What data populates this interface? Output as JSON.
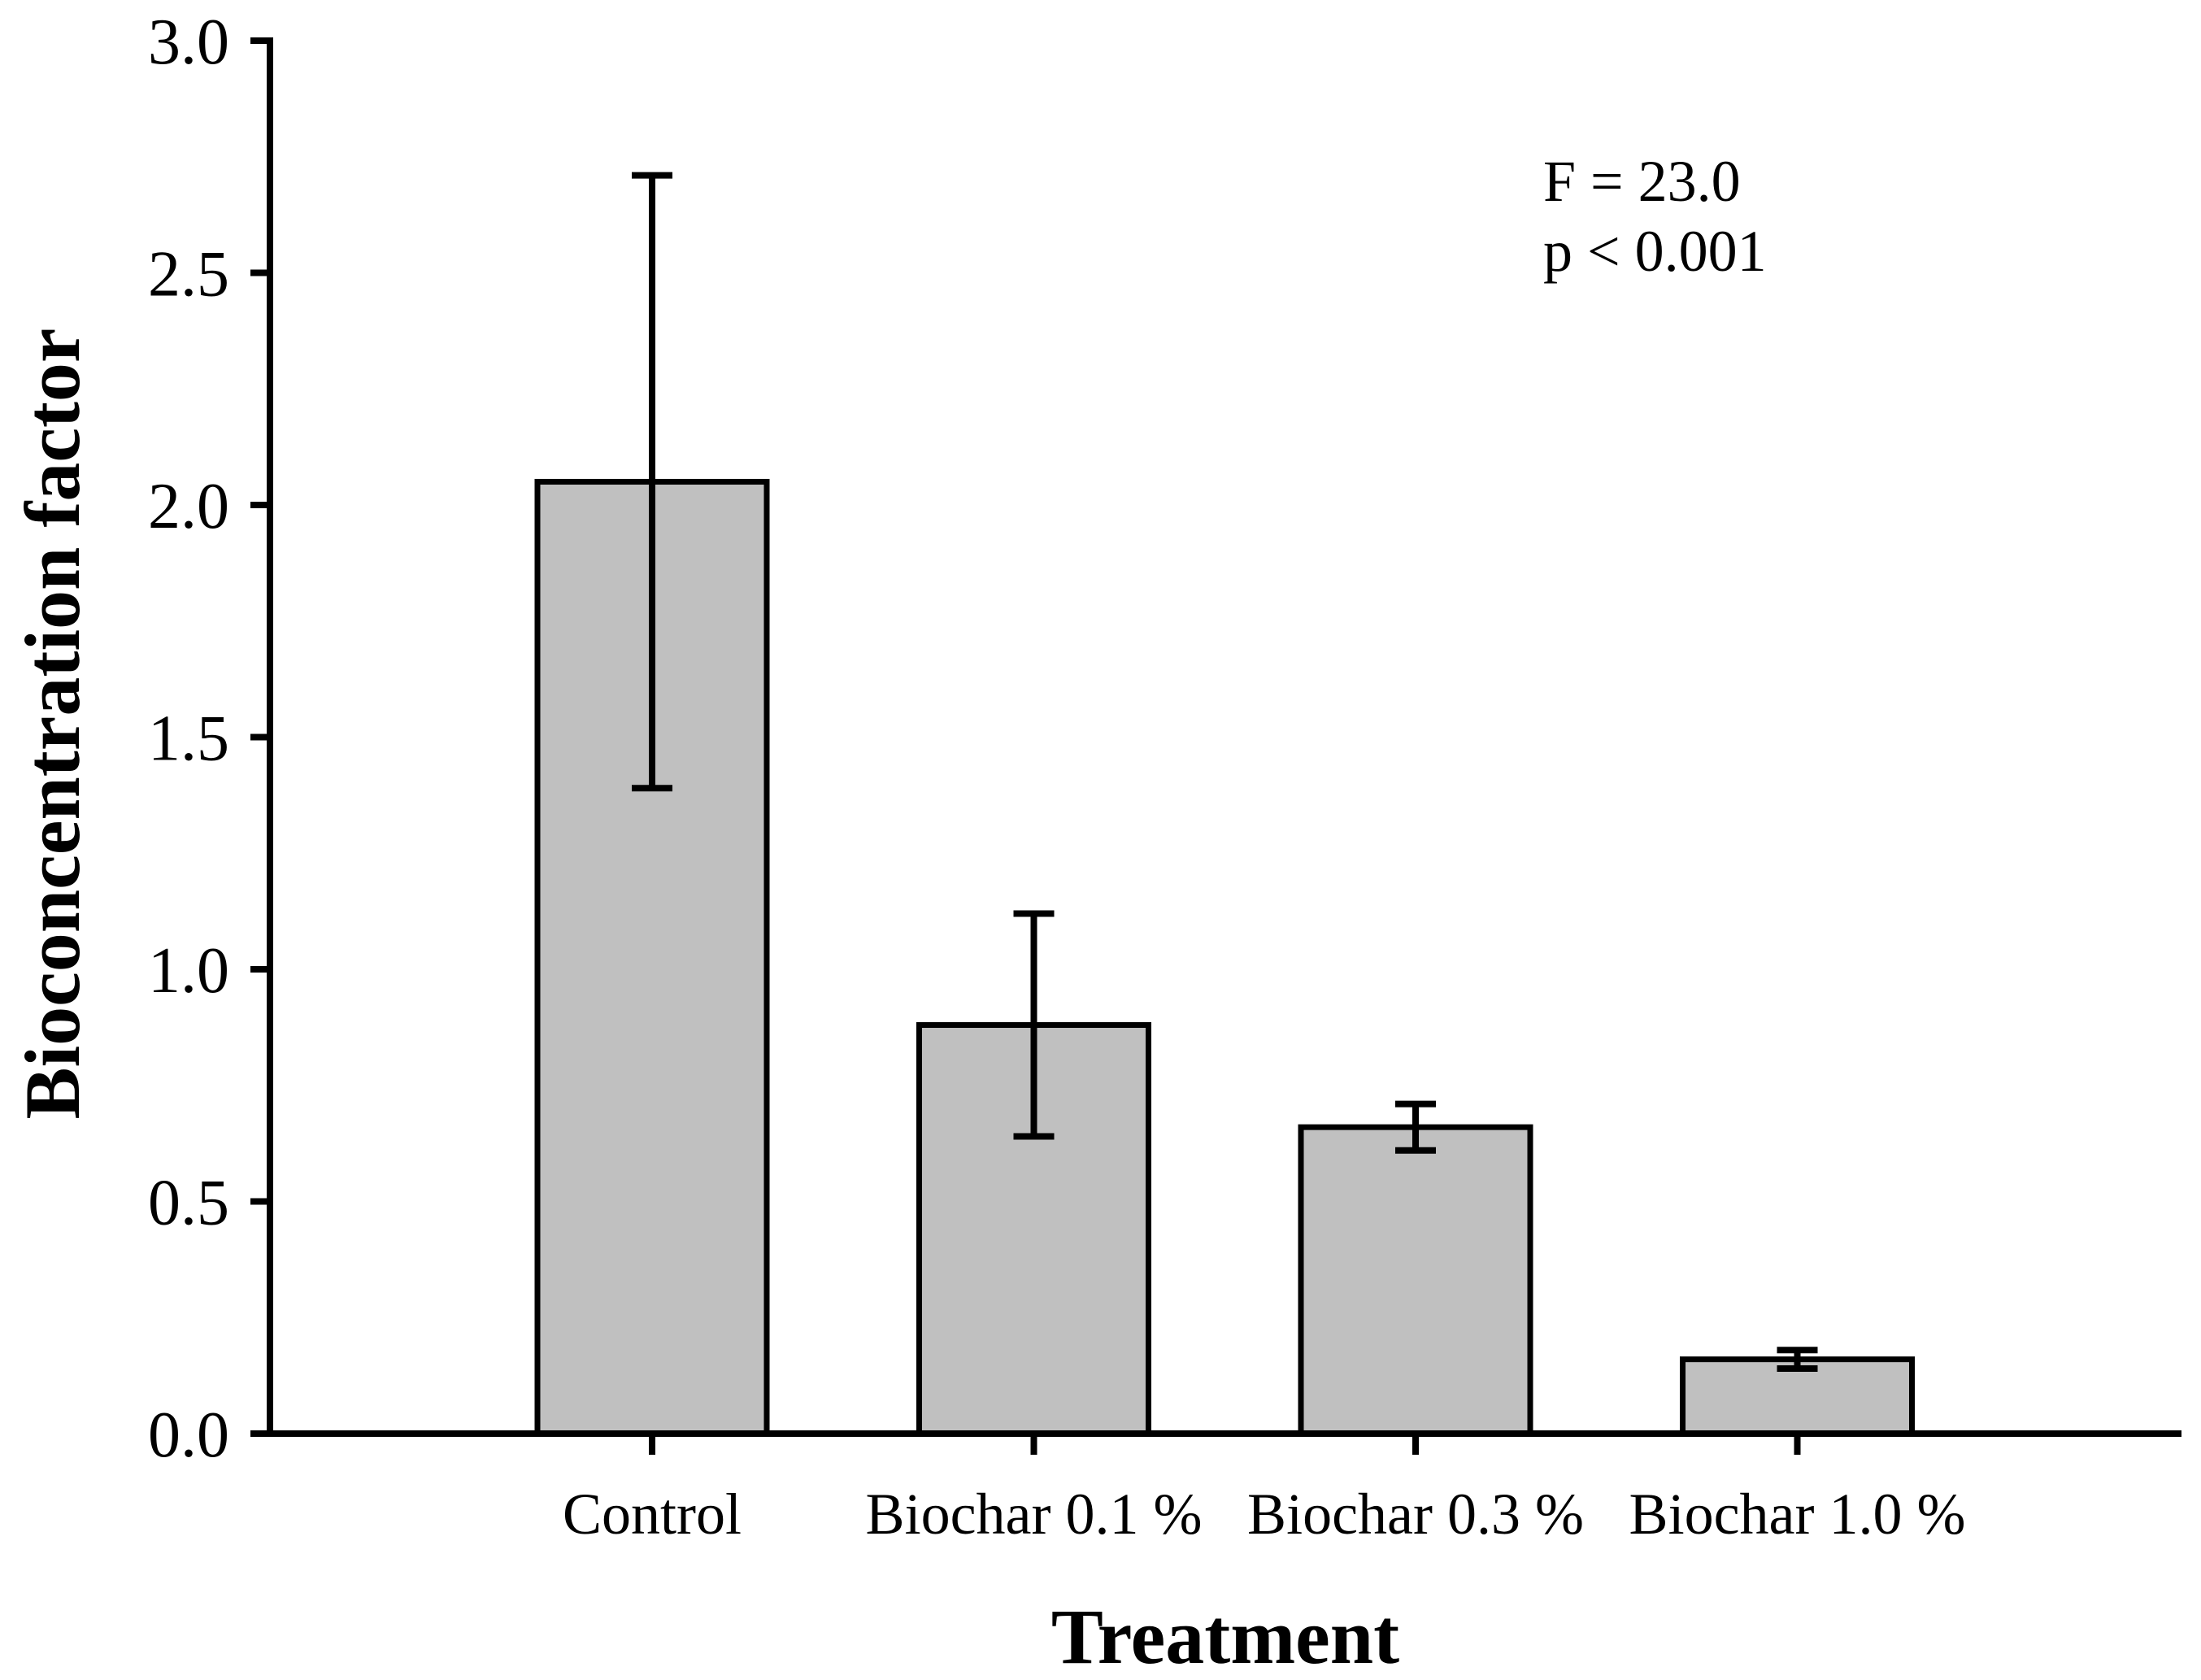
{
  "chart_data": {
    "type": "bar",
    "title": "",
    "xlabel": "Treatment",
    "ylabel": "Bioconcentration factor",
    "categories": [
      "Control",
      "Biochar 0.1 %",
      "Biochar 0.3 %",
      "Biochar 1.0 %"
    ],
    "values": [
      2.05,
      0.88,
      0.66,
      0.16
    ],
    "error_upper_abs": [
      2.71,
      1.12,
      0.71,
      0.18
    ],
    "error_lower_abs": [
      1.39,
      0.64,
      0.61,
      0.14
    ],
    "ytick_labels": [
      "0.0",
      "0.5",
      "1.0",
      "1.5",
      "2.0",
      "2.5",
      "3.0"
    ],
    "ytick_values": [
      0.0,
      0.5,
      1.0,
      1.5,
      2.0,
      2.5,
      3.0
    ],
    "ylim": [
      0.0,
      3.0
    ],
    "grid": false,
    "legend_position": "none",
    "annotation": {
      "f_stat": "F = 23.0",
      "p_value": "p < 0.001"
    },
    "colors": {
      "bar_fill": "#c0c0c0",
      "bar_border": "#000000",
      "axis": "#000000",
      "error_bar": "#000000",
      "background": "#ffffff"
    }
  }
}
